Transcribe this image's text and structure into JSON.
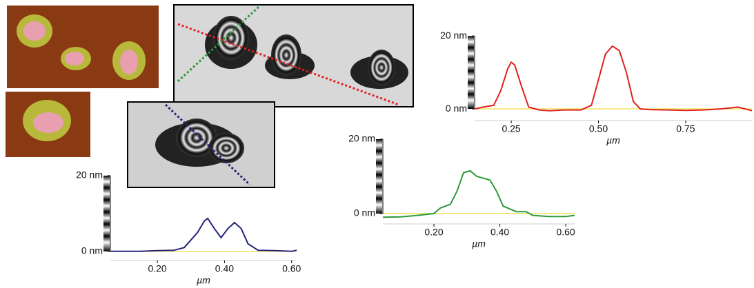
{
  "chart_data": [
    {
      "type": "line",
      "xlabel": "µm",
      "x": [
        0.145,
        0.17,
        0.2,
        0.22,
        0.24,
        0.25,
        0.26,
        0.28,
        0.3,
        0.33,
        0.36,
        0.4,
        0.45,
        0.48,
        0.5,
        0.52,
        0.54,
        0.56,
        0.58,
        0.6,
        0.62,
        0.65,
        0.7,
        0.75,
        0.8,
        0.85,
        0.9,
        0.94
      ],
      "series": [
        {
          "color": "#e02020",
          "values": [
            0,
            0.5,
            1,
            5,
            11,
            12.8,
            12,
            6,
            0.5,
            -0.3,
            -0.5,
            -0.3,
            -0.3,
            1,
            8,
            15,
            17.2,
            16,
            10,
            2,
            0,
            -0.2,
            -0.3,
            -0.4,
            -0.3,
            0,
            0.5,
            -0.5
          ]
        }
      ],
      "xlim": [
        0.145,
        0.94
      ],
      "xticks": [
        0.25,
        {
          "value": 0.5,
          "label": "0.50"
        },
        0.75
      ],
      "ylim": [
        -3.2,
        22.3
      ],
      "yticks": [
        {
          "value": 0,
          "label": "0 nm"
        },
        {
          "value": 20,
          "label": "20 nm"
        }
      ]
    },
    {
      "type": "line",
      "xlabel": "µm",
      "x": [
        0.045,
        0.1,
        0.15,
        0.2,
        0.22,
        0.25,
        0.27,
        0.29,
        0.31,
        0.33,
        0.35,
        0.37,
        0.39,
        0.41,
        0.45,
        0.48,
        0.5,
        0.55,
        0.6,
        0.627
      ],
      "series": [
        {
          "color": "#2a9a3a",
          "values": [
            -1,
            -0.9,
            -0.5,
            0,
            1.5,
            2.5,
            6,
            11,
            11.5,
            10,
            9.5,
            9,
            6,
            2,
            0.5,
            0.5,
            -0.5,
            -0.8,
            -0.8,
            -0.5
          ]
        }
      ],
      "xlim": [
        0.045,
        0.627
      ],
      "xticks": [
        {
          "value": 0.2,
          "label": "0.20"
        },
        {
          "value": 0.4,
          "label": "0.40"
        },
        {
          "value": 0.6,
          "label": "0.60"
        }
      ],
      "ylim": [
        -2.8,
        21.3
      ],
      "yticks": [
        {
          "value": 0,
          "label": "0 nm"
        },
        {
          "value": 20,
          "label": "20 nm"
        }
      ]
    },
    {
      "type": "line",
      "xlabel": "µm",
      "x": [
        0.06,
        0.1,
        0.15,
        0.2,
        0.25,
        0.28,
        0.3,
        0.32,
        0.34,
        0.35,
        0.37,
        0.39,
        0.41,
        0.43,
        0.45,
        0.47,
        0.5,
        0.55,
        0.6,
        0.615
      ],
      "series": [
        {
          "color": "#23237a",
          "values": [
            0,
            0,
            0,
            0.2,
            0.3,
            1,
            3,
            5,
            8,
            8.7,
            6,
            3.6,
            6,
            7.6,
            6,
            2,
            0.3,
            0.2,
            0,
            0.3
          ]
        }
      ],
      "xlim": [
        0.06,
        0.615
      ],
      "xticks": [
        {
          "value": 0.2,
          "label": "0.20"
        },
        {
          "value": 0.4,
          "label": "0.40"
        },
        {
          "value": 0.6,
          "label": "0.60"
        }
      ],
      "ylim": [
        -2.4,
        21.8
      ],
      "yticks": [
        {
          "value": 0,
          "label": "0 nm"
        },
        {
          "value": 20,
          "label": "20 nm"
        }
      ]
    }
  ]
}
